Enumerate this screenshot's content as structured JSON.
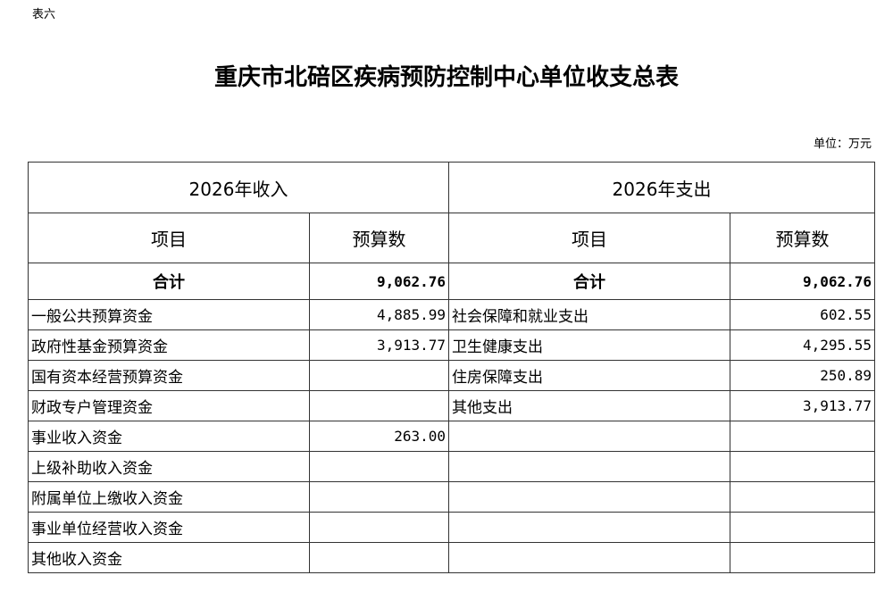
{
  "doc_label": "表六",
  "title": "重庆市北碚区疾病预防控制中心单位收支总表",
  "unit": "单位：万元",
  "income_header": "2026年收入",
  "expense_header": "2026年支出",
  "col_item": "项目",
  "col_budget": "预算数",
  "total_label": "合计",
  "income_total": "9,062.76",
  "expense_total": "9,062.76",
  "rows": [
    {
      "income_item": "一般公共预算资金",
      "income_value": "4,885.99",
      "expense_item": "社会保障和就业支出",
      "expense_value": "602.55"
    },
    {
      "income_item": "政府性基金预算资金",
      "income_value": "3,913.77",
      "expense_item": "卫生健康支出",
      "expense_value": "4,295.55"
    },
    {
      "income_item": "国有资本经营预算资金",
      "income_value": "",
      "expense_item": "住房保障支出",
      "expense_value": "250.89"
    },
    {
      "income_item": "财政专户管理资金",
      "income_value": "",
      "expense_item": "其他支出",
      "expense_value": "3,913.77"
    },
    {
      "income_item": "事业收入资金",
      "income_value": "263.00",
      "expense_item": "",
      "expense_value": ""
    },
    {
      "income_item": "上级补助收入资金",
      "income_value": "",
      "expense_item": "",
      "expense_value": ""
    },
    {
      "income_item": "附属单位上缴收入资金",
      "income_value": "",
      "expense_item": "",
      "expense_value": ""
    },
    {
      "income_item": "事业单位经营收入资金",
      "income_value": "",
      "expense_item": "",
      "expense_value": ""
    },
    {
      "income_item": "其他收入资金",
      "income_value": "",
      "expense_item": "",
      "expense_value": ""
    }
  ]
}
